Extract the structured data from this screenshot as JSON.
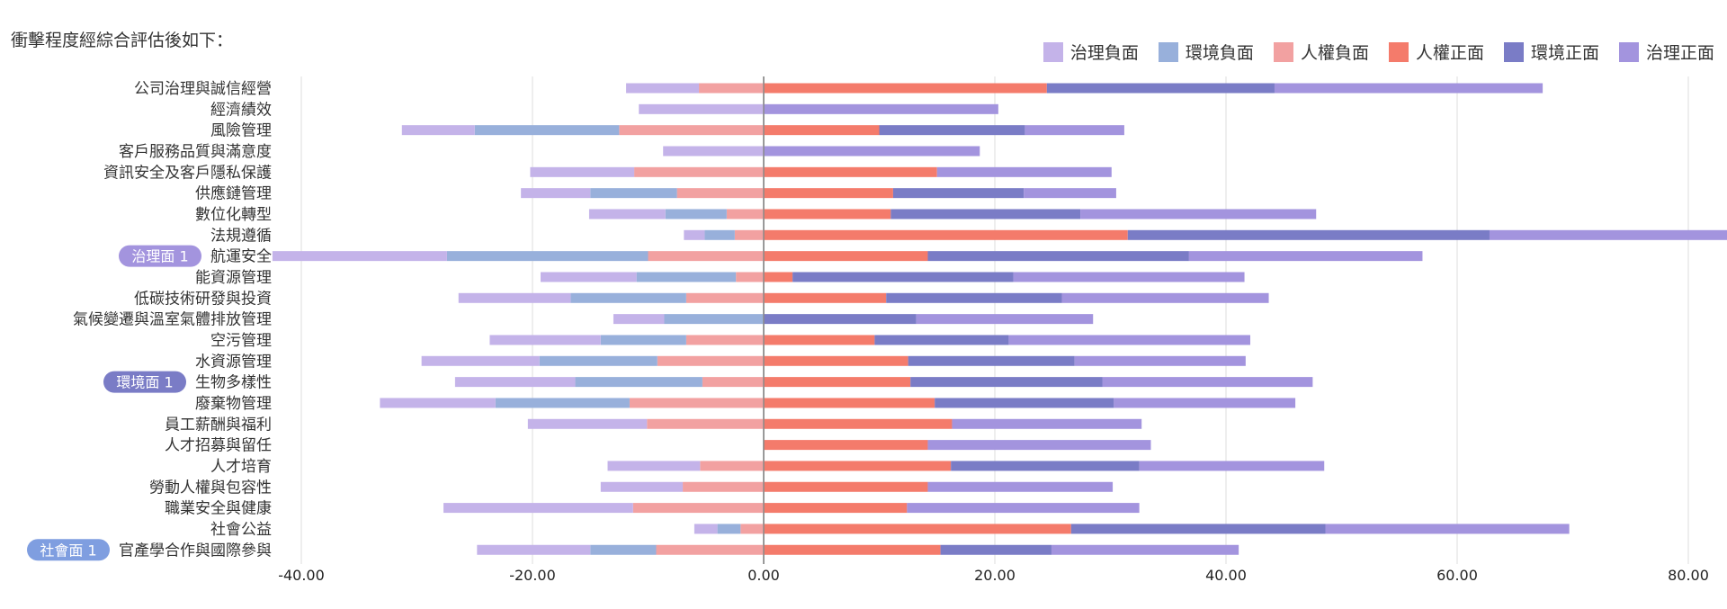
{
  "heading": "衝擊程度經綜合評估後如下：",
  "colors": {
    "gov_neg": "#c4b3e9",
    "env_neg": "#98b0db",
    "hr_neg": "#f2a1a1",
    "hr_pos": "#f47b6b",
    "env_pos": "#7a7cc6",
    "gov_pos": "#a394de"
  },
  "chart_data": {
    "type": "bar",
    "orientation": "horizontal-stacked-diverging",
    "categories": [
      "公司治理與誠信經營",
      "經濟績效",
      "風險管理",
      "客戶服務品質與滿意度",
      "資訊安全及客戶隱私保護",
      "供應鏈管理",
      "數位化轉型",
      "法規遵循",
      "航運安全",
      "能資源管理",
      "低碳技術研發與投資",
      "氣候變遷與溫室氣體排放管理",
      "空污管理",
      "水資源管理",
      "生物多樣性",
      "廢棄物管理",
      "員工薪酬與福利",
      "人才招募與留任",
      "人才培育",
      "勞動人權與包容性",
      "職業安全與健康",
      "社會公益",
      "官產學合作與國際參與"
    ],
    "badges": [
      {
        "category_index": 8,
        "text": "治理面 1",
        "color": "#a394de",
        "label_color": "#a394de"
      },
      {
        "category_index": 14,
        "text": "環境面 1",
        "color": "#7a7cc6",
        "label_color": "#7a7cc6"
      },
      {
        "category_index": 22,
        "text": "社會面 1",
        "color": "#7f9ee0",
        "label_color": "#7f9ee0"
      }
    ],
    "series": [
      {
        "name": "治理負面",
        "color": "#c4b3e9",
        "values": [
          -6.3,
          -10.8,
          -6.3,
          -8.7,
          -9.0,
          -6.0,
          -6.6,
          -1.8,
          -15.1,
          -8.3,
          -9.7,
          -4.4,
          -9.6,
          -10.2,
          -10.4,
          -10.0,
          -10.3,
          0,
          -8.0,
          -7.1,
          -16.4,
          -2.0,
          -9.8
        ]
      },
      {
        "name": "環境負面",
        "color": "#98b0db",
        "values": [
          0,
          0,
          -12.5,
          0,
          0,
          -7.5,
          -5.3,
          -2.6,
          -17.4,
          -8.6,
          -10.0,
          -8.6,
          -7.4,
          -10.2,
          -11.0,
          -11.6,
          0,
          0,
          0,
          0,
          0,
          -2.0,
          -5.7
        ]
      },
      {
        "name": "人權負面",
        "color": "#f2a1a1",
        "values": [
          -5.6,
          0,
          -12.5,
          0,
          -11.2,
          -7.5,
          -3.2,
          -2.5,
          -10.0,
          -2.4,
          -6.7,
          0,
          -6.7,
          -9.2,
          -5.3,
          -11.6,
          -10.1,
          0,
          -5.5,
          -7.0,
          -11.3,
          -2.0,
          -9.3
        ]
      },
      {
        "name": "人權正面",
        "color": "#f47b6b",
        "values": [
          24.5,
          0,
          10.0,
          0,
          15.0,
          11.2,
          11.0,
          31.5,
          14.2,
          2.5,
          10.6,
          0,
          9.6,
          12.5,
          12.7,
          14.8,
          16.3,
          14.2,
          16.2,
          14.2,
          12.4,
          26.6,
          15.3
        ]
      },
      {
        "name": "環境正面",
        "color": "#7a7cc6",
        "values": [
          19.7,
          0,
          12.6,
          0,
          0,
          11.3,
          16.4,
          31.3,
          22.6,
          19.1,
          15.2,
          13.2,
          11.6,
          14.4,
          16.6,
          15.5,
          0,
          0,
          16.3,
          0,
          0,
          22.0,
          9.6
        ]
      },
      {
        "name": "治理正面",
        "color": "#a394de",
        "values": [
          23.2,
          20.3,
          8.6,
          18.7,
          15.1,
          8.0,
          20.4,
          31.1,
          20.2,
          20.0,
          17.9,
          15.3,
          20.9,
          14.8,
          18.2,
          15.7,
          16.4,
          19.3,
          16.0,
          16.0,
          20.1,
          21.1,
          16.2
        ]
      }
    ],
    "xlim": [
      -40,
      80
    ],
    "ticks": [
      -40,
      -20,
      0,
      20,
      40,
      60,
      80
    ],
    "tick_labels": [
      "-40.00",
      "-20.00",
      "0.00",
      "20.00",
      "40.00",
      "60.00",
      "80.00"
    ],
    "grid": true,
    "legend_position": "top-right"
  }
}
